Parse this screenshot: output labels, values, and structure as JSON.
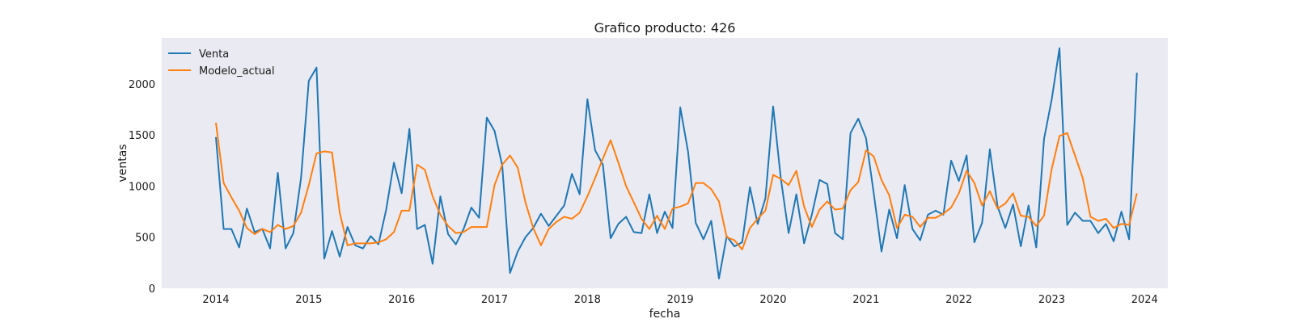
{
  "chart_data": {
    "type": "line",
    "title": "Grafico producto: 426",
    "xlabel": "fecha",
    "ylabel": "ventas",
    "x_ticks": [
      "2014",
      "2015",
      "2016",
      "2017",
      "2018",
      "2019",
      "2020",
      "2021",
      "2022",
      "2023",
      "2024"
    ],
    "y_ticks": [
      "0",
      "500",
      "1000",
      "1500",
      "2000"
    ],
    "ylim": [
      0,
      2450
    ],
    "xlim": [
      "2013-06",
      "2024-04"
    ],
    "grid": false,
    "legend_position": "top-left",
    "background_color": "#eaeaf2",
    "x": [
      "2014-01",
      "2014-02",
      "2014-03",
      "2014-04",
      "2014-05",
      "2014-06",
      "2014-07",
      "2014-08",
      "2014-09",
      "2014-10",
      "2014-11",
      "2014-12",
      "2015-01",
      "2015-02",
      "2015-03",
      "2015-04",
      "2015-05",
      "2015-06",
      "2015-07",
      "2015-08",
      "2015-09",
      "2015-10",
      "2015-11",
      "2015-12",
      "2016-01",
      "2016-02",
      "2016-03",
      "2016-04",
      "2016-05",
      "2016-06",
      "2016-07",
      "2016-08",
      "2016-09",
      "2016-10",
      "2016-11",
      "2016-12",
      "2017-01",
      "2017-02",
      "2017-03",
      "2017-04",
      "2017-05",
      "2017-06",
      "2017-07",
      "2017-08",
      "2017-09",
      "2017-10",
      "2017-11",
      "2017-12",
      "2018-01",
      "2018-02",
      "2018-03",
      "2018-04",
      "2018-05",
      "2018-06",
      "2018-07",
      "2018-08",
      "2018-09",
      "2018-10",
      "2018-11",
      "2018-12",
      "2019-01",
      "2019-02",
      "2019-03",
      "2019-04",
      "2019-05",
      "2019-06",
      "2019-07",
      "2019-08",
      "2019-09",
      "2019-10",
      "2019-11",
      "2019-12",
      "2020-01",
      "2020-02",
      "2020-03",
      "2020-04",
      "2020-05",
      "2020-06",
      "2020-07",
      "2020-08",
      "2020-09",
      "2020-10",
      "2020-11",
      "2020-12",
      "2021-01",
      "2021-02",
      "2021-03",
      "2021-04",
      "2021-05",
      "2021-06",
      "2021-07",
      "2021-08",
      "2021-09",
      "2021-10",
      "2021-11",
      "2021-12",
      "2022-01",
      "2022-02",
      "2022-03",
      "2022-04",
      "2022-05",
      "2022-06",
      "2022-07",
      "2022-08",
      "2022-09",
      "2022-10",
      "2022-11",
      "2022-12",
      "2023-01",
      "2023-02",
      "2023-03",
      "2023-04",
      "2023-05",
      "2023-06",
      "2023-07",
      "2023-08",
      "2023-09",
      "2023-10",
      "2023-11",
      "2023-12"
    ],
    "series": [
      {
        "name": "Venta",
        "color": "#1f77b4",
        "values": [
          1480,
          580,
          580,
          400,
          780,
          550,
          580,
          390,
          1130,
          390,
          540,
          1080,
          2030,
          2160,
          290,
          560,
          310,
          600,
          420,
          390,
          510,
          430,
          770,
          1230,
          930,
          1560,
          580,
          620,
          240,
          900,
          530,
          430,
          580,
          790,
          690,
          1670,
          1540,
          1200,
          150,
          360,
          500,
          590,
          730,
          610,
          710,
          810,
          1120,
          920,
          1850,
          1350,
          1210,
          490,
          630,
          700,
          550,
          540,
          920,
          540,
          750,
          590,
          1770,
          1340,
          640,
          480,
          660,
          95,
          510,
          410,
          450,
          990,
          630,
          880,
          1780,
          1070,
          540,
          920,
          440,
          720,
          1060,
          1020,
          540,
          480,
          1520,
          1660,
          1470,
          930,
          360,
          770,
          490,
          1010,
          580,
          470,
          720,
          760,
          720,
          1250,
          1050,
          1300,
          450,
          640,
          1360,
          800,
          590,
          820,
          410,
          810,
          400,
          1460,
          1850,
          2350,
          620,
          740,
          660,
          660,
          540,
          630,
          460,
          750,
          480,
          2110
        ]
      },
      {
        "name": "Modelo_actual",
        "color": "#ff7f0e",
        "values": [
          1620,
          1030,
          890,
          760,
          590,
          530,
          580,
          550,
          620,
          580,
          610,
          740,
          1010,
          1320,
          1340,
          1330,
          740,
          420,
          440,
          440,
          440,
          450,
          480,
          550,
          760,
          760,
          1210,
          1160,
          900,
          720,
          610,
          540,
          550,
          600,
          600,
          600,
          1010,
          1210,
          1300,
          1180,
          840,
          590,
          420,
          580,
          650,
          700,
          680,
          740,
          900,
          1080,
          1270,
          1450,
          1230,
          1000,
          840,
          680,
          580,
          710,
          580,
          780,
          800,
          830,
          1030,
          1030,
          970,
          850,
          500,
          470,
          380,
          590,
          680,
          760,
          1110,
          1070,
          1010,
          1150,
          800,
          600,
          770,
          850,
          770,
          780,
          960,
          1040,
          1350,
          1290,
          1060,
          910,
          590,
          720,
          700,
          600,
          690,
          690,
          730,
          790,
          930,
          1150,
          1030,
          810,
          950,
          780,
          830,
          930,
          710,
          700,
          610,
          710,
          1170,
          1490,
          1520,
          1300,
          1080,
          700,
          660,
          680,
          590,
          630,
          620,
          930
        ]
      }
    ]
  }
}
